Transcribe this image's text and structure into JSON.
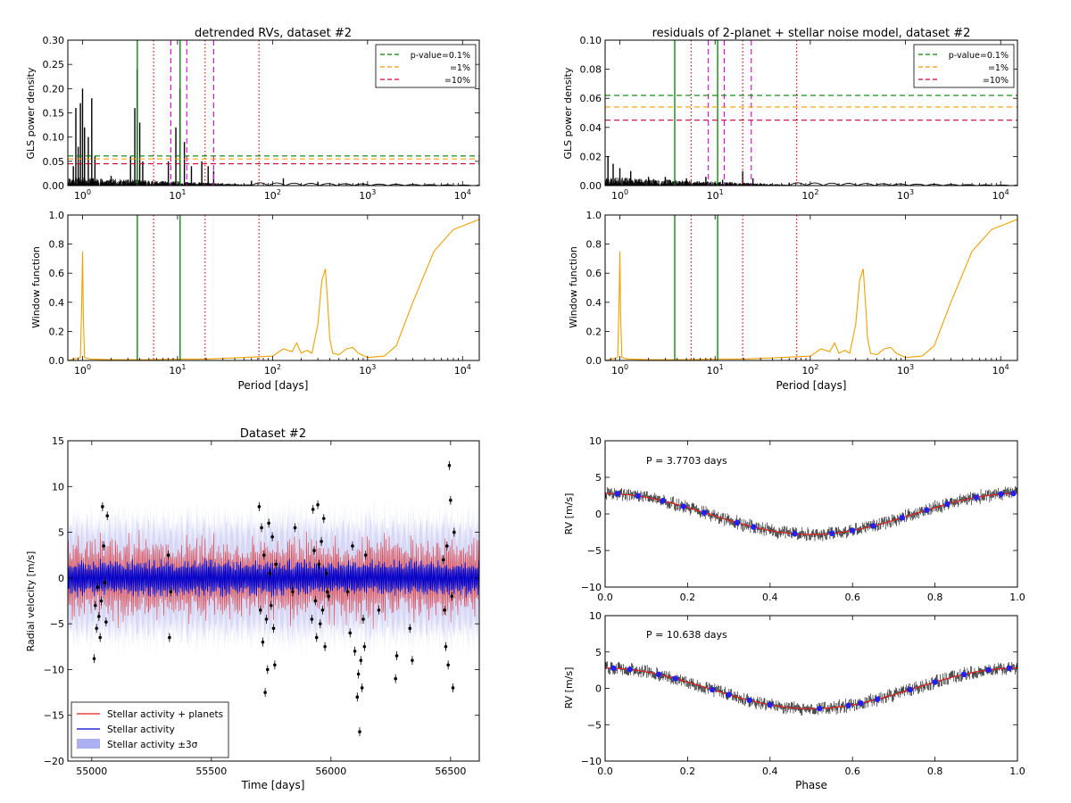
{
  "figure": "detrended RVs, residuals, window function and phase-folded RV curves",
  "chart_data": [
    {
      "id": "gls_detrended",
      "type": "line",
      "title": "detrended RVs, dataset #2",
      "xlabel": "",
      "ylabel": "GLS power density",
      "xscale": "log",
      "xlim": [
        0.7,
        15000
      ],
      "ylim": [
        0,
        0.3
      ],
      "yticks": [
        "0.00",
        "0.05",
        "0.10",
        "0.15",
        "0.20",
        "0.25",
        "0.30"
      ],
      "yticks_values": [
        0,
        0.05,
        0.1,
        0.15,
        0.2,
        0.25,
        0.3
      ],
      "xticks": [
        "10^0",
        "10^1",
        "10^2",
        "10^3",
        "10^4"
      ],
      "xticks_values": [
        1,
        10,
        100,
        1000,
        10000
      ],
      "peaks": [
        {
          "period": 0.8,
          "power": 0.04
        },
        {
          "period": 0.85,
          "power": 0.16
        },
        {
          "period": 0.9,
          "power": 0.08
        },
        {
          "period": 0.95,
          "power": 0.17
        },
        {
          "period": 1.0,
          "power": 0.2
        },
        {
          "period": 1.05,
          "power": 0.12
        },
        {
          "period": 1.15,
          "power": 0.1
        },
        {
          "period": 1.25,
          "power": 0.18
        },
        {
          "period": 1.35,
          "power": 0.06
        },
        {
          "period": 2.0,
          "power": 0.02
        },
        {
          "period": 3.2,
          "power": 0.06
        },
        {
          "period": 3.55,
          "power": 0.16
        },
        {
          "period": 3.77,
          "power": 0.24
        },
        {
          "period": 4.0,
          "power": 0.13
        },
        {
          "period": 4.3,
          "power": 0.05
        },
        {
          "period": 8.0,
          "power": 0.05
        },
        {
          "period": 9.6,
          "power": 0.12
        },
        {
          "period": 10.6,
          "power": 0.2
        },
        {
          "period": 11.8,
          "power": 0.09
        },
        {
          "period": 14.0,
          "power": 0.04
        },
        {
          "period": 18.0,
          "power": 0.05
        },
        {
          "period": 21.0,
          "power": 0.04
        },
        {
          "period": 24.0,
          "power": 0.03
        },
        {
          "period": 60.0,
          "power": 0.01
        },
        {
          "period": 130.0,
          "power": 0.015
        },
        {
          "period": 300.0,
          "power": 0.008
        },
        {
          "period": 900.0,
          "power": 0.006
        }
      ],
      "vlines": [
        {
          "x": 3.7703,
          "style": "solid",
          "color": "#008000"
        },
        {
          "x": 10.638,
          "style": "solid",
          "color": "#008000"
        },
        {
          "x": 5.6,
          "style": "dotted",
          "color": "#dd0000"
        },
        {
          "x": 19.5,
          "style": "dotted",
          "color": "#dd0000"
        },
        {
          "x": 72.0,
          "style": "dotted",
          "color": "#dd0000"
        },
        {
          "x": 8.5,
          "style": "dashed",
          "color": "#dd00dd"
        },
        {
          "x": 12.5,
          "style": "dashed",
          "color": "#dd00dd"
        },
        {
          "x": 24.0,
          "style": "dashed",
          "color": "#dd00dd"
        }
      ],
      "hlines": [
        {
          "y": 0.061,
          "color": "#008000",
          "label": "p-value=0.1%"
        },
        {
          "y": 0.055,
          "color": "#ff9900",
          "label": "=1%"
        },
        {
          "y": 0.045,
          "color": "#cc0033",
          "label": "=10%"
        }
      ]
    },
    {
      "id": "gls_residuals",
      "type": "line",
      "title": "residuals of 2-planet + stellar noise model, dataset #2",
      "xlabel": "",
      "ylabel": "GLS power density",
      "xscale": "log",
      "xlim": [
        0.7,
        15000
      ],
      "ylim": [
        0,
        0.1
      ],
      "yticks": [
        "0.00",
        "0.02",
        "0.04",
        "0.06",
        "0.08",
        "0.10"
      ],
      "yticks_values": [
        0,
        0.02,
        0.04,
        0.06,
        0.08,
        0.1
      ],
      "xticks": [
        "10^0",
        "10^1",
        "10^2",
        "10^3",
        "10^4"
      ],
      "xticks_values": [
        1,
        10,
        100,
        1000,
        10000
      ],
      "peaks": [
        {
          "period": 0.75,
          "power": 0.02
        },
        {
          "period": 0.85,
          "power": 0.015
        },
        {
          "period": 1.0,
          "power": 0.012
        },
        {
          "period": 1.3,
          "power": 0.01
        },
        {
          "period": 2.0,
          "power": 0.006
        },
        {
          "period": 3.0,
          "power": 0.006
        },
        {
          "period": 5.0,
          "power": 0.005
        },
        {
          "period": 8.0,
          "power": 0.006
        },
        {
          "period": 12.0,
          "power": 0.004
        },
        {
          "period": 19.5,
          "power": 0.01
        },
        {
          "period": 25.0,
          "power": 0.005
        },
        {
          "period": 60.0,
          "power": 0.002
        }
      ],
      "vlines": [
        {
          "x": 3.7703,
          "style": "solid",
          "color": "#008000"
        },
        {
          "x": 10.638,
          "style": "solid",
          "color": "#008000"
        },
        {
          "x": 5.6,
          "style": "dotted",
          "color": "#dd0000"
        },
        {
          "x": 19.5,
          "style": "dotted",
          "color": "#dd0000"
        },
        {
          "x": 72.0,
          "style": "dotted",
          "color": "#dd0000"
        },
        {
          "x": 8.5,
          "style": "dashed",
          "color": "#dd00dd"
        },
        {
          "x": 12.5,
          "style": "dashed",
          "color": "#dd00dd"
        },
        {
          "x": 24.0,
          "style": "dashed",
          "color": "#dd00dd"
        }
      ],
      "hlines": [
        {
          "y": 0.062,
          "color": "#008000",
          "label": "p-value=0.1%"
        },
        {
          "y": 0.054,
          "color": "#ff9900",
          "label": "=1%"
        },
        {
          "y": 0.045,
          "color": "#cc0033",
          "label": "=10%"
        }
      ]
    },
    {
      "id": "window_left",
      "type": "line",
      "title": "",
      "xlabel": "Period [days]",
      "ylabel": "Window function",
      "xscale": "log",
      "xlim": [
        0.7,
        15000
      ],
      "ylim": [
        0,
        1.0
      ],
      "yticks": [
        "0.0",
        "0.2",
        "0.4",
        "0.6",
        "0.8",
        "1.0"
      ],
      "yticks_values": [
        0,
        0.2,
        0.4,
        0.6,
        0.8,
        1.0
      ],
      "xticks": [
        "10^0",
        "10^1",
        "10^2",
        "10^3",
        "10^4"
      ],
      "xticks_values": [
        1,
        10,
        100,
        1000,
        10000
      ],
      "color": "#f0a000",
      "x": [
        0.7,
        0.95,
        0.98,
        1.0,
        1.02,
        1.05,
        1.2,
        2,
        5,
        10,
        20,
        50,
        100,
        130,
        160,
        180,
        200,
        230,
        260,
        300,
        330,
        360,
        380,
        400,
        430,
        500,
        600,
        700,
        800,
        1000,
        1500,
        2000,
        3000,
        5000,
        8000,
        15000
      ],
      "y": [
        0.0,
        0.02,
        0.4,
        0.75,
        0.3,
        0.02,
        0.01,
        0.005,
        0.005,
        0.01,
        0.01,
        0.02,
        0.03,
        0.08,
        0.06,
        0.12,
        0.05,
        0.07,
        0.05,
        0.25,
        0.55,
        0.63,
        0.4,
        0.15,
        0.05,
        0.04,
        0.08,
        0.09,
        0.05,
        0.02,
        0.03,
        0.1,
        0.4,
        0.75,
        0.9,
        0.97
      ]
    },
    {
      "id": "window_right",
      "type": "line",
      "title": "",
      "xlabel": "Period [days]",
      "ylabel": "Window function",
      "xscale": "log",
      "xlim": [
        0.7,
        15000
      ],
      "ylim": [
        0,
        1.0
      ],
      "yticks": [
        "0.0",
        "0.2",
        "0.4",
        "0.6",
        "0.8",
        "1.0"
      ],
      "yticks_values": [
        0,
        0.2,
        0.4,
        0.6,
        0.8,
        1.0
      ],
      "xticks": [
        "10^0",
        "10^1",
        "10^2",
        "10^3",
        "10^4"
      ],
      "xticks_values": [
        1,
        10,
        100,
        1000,
        10000
      ],
      "color": "#f0a000",
      "x": [
        0.7,
        0.95,
        0.98,
        1.0,
        1.02,
        1.05,
        1.2,
        2,
        5,
        10,
        20,
        50,
        100,
        130,
        160,
        180,
        200,
        230,
        260,
        300,
        330,
        360,
        380,
        400,
        430,
        500,
        600,
        700,
        800,
        1000,
        1500,
        2000,
        3000,
        5000,
        8000,
        15000
      ],
      "y": [
        0.0,
        0.02,
        0.4,
        0.75,
        0.3,
        0.02,
        0.01,
        0.005,
        0.005,
        0.01,
        0.01,
        0.02,
        0.03,
        0.08,
        0.06,
        0.12,
        0.05,
        0.07,
        0.05,
        0.25,
        0.55,
        0.63,
        0.4,
        0.15,
        0.05,
        0.04,
        0.08,
        0.09,
        0.05,
        0.02,
        0.03,
        0.1,
        0.4,
        0.75,
        0.9,
        0.97
      ]
    },
    {
      "id": "timeseries",
      "type": "line",
      "title": "Dataset #2",
      "xlabel": "Time [days]",
      "ylabel": "Radial velocity [m/s]",
      "xlim": [
        54900,
        56620
      ],
      "ylim": [
        -20,
        15
      ],
      "xticks": [
        "55000",
        "55500",
        "56000",
        "56500"
      ],
      "xticks_values": [
        55000,
        55500,
        56000,
        56500
      ],
      "yticks": [
        "−20",
        "−15",
        "−10",
        "−5",
        "0",
        "5",
        "10",
        "15"
      ],
      "yticks_values": [
        -20,
        -15,
        -10,
        -5,
        0,
        5,
        10,
        15
      ],
      "legend": [
        {
          "label": "Stellar activity + planets",
          "color": "#dd2222",
          "kind": "line"
        },
        {
          "label": "Stellar activity",
          "color": "#0000cc",
          "kind": "line"
        },
        {
          "label": "Stellar activity ±3σ",
          "color": "#aab0f0",
          "kind": "band"
        }
      ],
      "series": [
        {
          "name": "Stellar activity + planets",
          "color": "#dd2222",
          "amplitude": 4.5
        },
        {
          "name": "Stellar activity",
          "color": "#0000cc",
          "amplitude": 1.8
        },
        {
          "name": "Stellar activity ±3σ",
          "color": "#b4b8ee",
          "band": 7.5
        }
      ],
      "points": [
        [
          55010,
          -8.8
        ],
        [
          55015,
          -3.0
        ],
        [
          55020,
          -5.5
        ],
        [
          55025,
          -1.0
        ],
        [
          55030,
          -4.2
        ],
        [
          55035,
          -6.5
        ],
        [
          55040,
          -2.5
        ],
        [
          55045,
          7.8
        ],
        [
          55050,
          3.5
        ],
        [
          55055,
          -0.5
        ],
        [
          55060,
          -4.8
        ],
        [
          55065,
          6.8
        ],
        [
          55320,
          2.5
        ],
        [
          55325,
          -6.5
        ],
        [
          55330,
          -1.5
        ],
        [
          55700,
          7.8
        ],
        [
          55705,
          -3.5
        ],
        [
          55710,
          5.5
        ],
        [
          55715,
          -7.0
        ],
        [
          55720,
          2.5
        ],
        [
          55725,
          -12.5
        ],
        [
          55730,
          -4.5
        ],
        [
          55735,
          -10.0
        ],
        [
          55740,
          6.0
        ],
        [
          55745,
          0.5
        ],
        [
          55750,
          -3.0
        ],
        [
          55755,
          4.5
        ],
        [
          55760,
          -5.5
        ],
        [
          55765,
          -9.5
        ],
        [
          55770,
          1.5
        ],
        [
          55840,
          -1.5
        ],
        [
          55850,
          5.5
        ],
        [
          55920,
          -4.5
        ],
        [
          55925,
          7.5
        ],
        [
          55930,
          3.0
        ],
        [
          55935,
          -2.5
        ],
        [
          55940,
          -6.5
        ],
        [
          55945,
          8.0
        ],
        [
          55950,
          1.5
        ],
        [
          55955,
          -5.0
        ],
        [
          55960,
          4.0
        ],
        [
          55965,
          -3.5
        ],
        [
          55970,
          6.5
        ],
        [
          55975,
          -7.5
        ],
        [
          55980,
          0.5
        ],
        [
          55985,
          -1.5
        ],
        [
          55990,
          -2.0
        ],
        [
          56070,
          -1.5
        ],
        [
          56080,
          -6.0
        ],
        [
          56090,
          3.5
        ],
        [
          56100,
          -8.0
        ],
        [
          56110,
          -13.0
        ],
        [
          56115,
          -10.5
        ],
        [
          56120,
          -16.8
        ],
        [
          56125,
          -9.0
        ],
        [
          56130,
          -12.0
        ],
        [
          56135,
          -4.5
        ],
        [
          56140,
          -7.5
        ],
        [
          56145,
          2.5
        ],
        [
          56200,
          -3.5
        ],
        [
          56270,
          -11.0
        ],
        [
          56275,
          -8.5
        ],
        [
          56330,
          -5.5
        ],
        [
          56340,
          -9.0
        ],
        [
          56470,
          2.0
        ],
        [
          56475,
          -3.5
        ],
        [
          56480,
          -7.5
        ],
        [
          56485,
          3.5
        ],
        [
          56490,
          -9.5
        ],
        [
          56495,
          12.3
        ],
        [
          56500,
          8.5
        ],
        [
          56505,
          -2.0
        ],
        [
          56510,
          -12.0
        ],
        [
          56515,
          5.0
        ]
      ]
    },
    {
      "id": "phase_p1",
      "type": "scatter",
      "title": "",
      "annotation": "P = 3.7703 days",
      "xlabel": "",
      "ylabel": "RV [m/s]",
      "xlim": [
        0,
        1
      ],
      "ylim": [
        -10,
        10
      ],
      "xticks": [
        "0.0",
        "0.2",
        "0.4",
        "0.6",
        "0.8",
        "1.0"
      ],
      "xticks_values": [
        0,
        0.2,
        0.4,
        0.6,
        0.8,
        1.0
      ],
      "yticks": [
        "−10",
        "−5",
        "0",
        "5",
        "10"
      ],
      "yticks_values": [
        -10,
        -5,
        0,
        5,
        10
      ],
      "amplitude": 2.8,
      "phase_offset": 0.0,
      "binned_phases": [
        0.03,
        0.08,
        0.14,
        0.19,
        0.24,
        0.32,
        0.36,
        0.46,
        0.55,
        0.6,
        0.65,
        0.72,
        0.78,
        0.83,
        0.9,
        0.96,
        0.99
      ]
    },
    {
      "id": "phase_p2",
      "type": "scatter",
      "title": "",
      "annotation": "P = 10.638 days",
      "xlabel": "Phase",
      "ylabel": "RV [m/s]",
      "xlim": [
        0,
        1
      ],
      "ylim": [
        -10,
        10
      ],
      "xticks": [
        "0.0",
        "0.2",
        "0.4",
        "0.6",
        "0.8",
        "1.0"
      ],
      "xticks_values": [
        0,
        0.2,
        0.4,
        0.6,
        0.8,
        1.0
      ],
      "yticks": [
        "−10",
        "−5",
        "0",
        "5",
        "10"
      ],
      "yticks_values": [
        -10,
        -5,
        0,
        5,
        10
      ],
      "amplitude": 2.8,
      "phase_offset": 0.0,
      "binned_phases": [
        0.02,
        0.06,
        0.13,
        0.17,
        0.26,
        0.3,
        0.35,
        0.4,
        0.52,
        0.59,
        0.62,
        0.66,
        0.74,
        0.8,
        0.87,
        0.93,
        0.98
      ]
    }
  ]
}
